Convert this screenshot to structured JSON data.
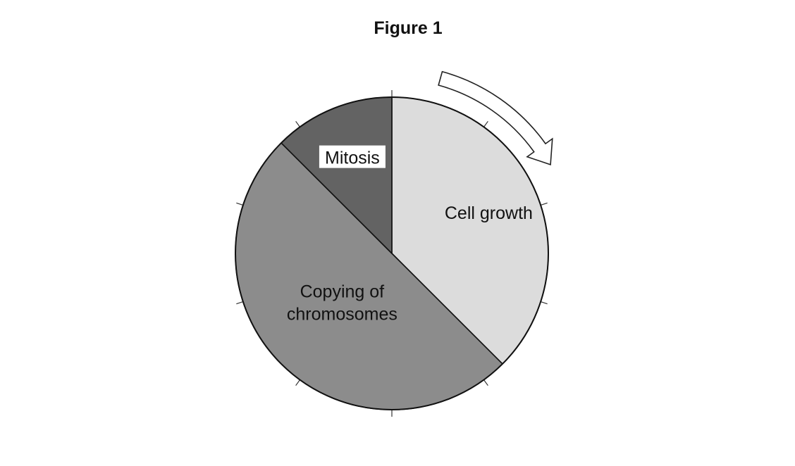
{
  "chart_data": {
    "type": "pie",
    "title": "Figure 1",
    "direction": "clockwise",
    "tick_count": 10,
    "slices": [
      {
        "name": "Cell growth",
        "label_lines": [
          "Cell growth"
        ],
        "value": 37.5,
        "color": "#dcdcdc"
      },
      {
        "name": "Copying of chromosomes",
        "label_lines": [
          "Copying of",
          "chromosomes"
        ],
        "value": 50,
        "color": "#8c8c8c"
      },
      {
        "name": "Mitosis",
        "label_lines": [
          "Mitosis"
        ],
        "value": 12.5,
        "color": "#636363"
      }
    ]
  }
}
